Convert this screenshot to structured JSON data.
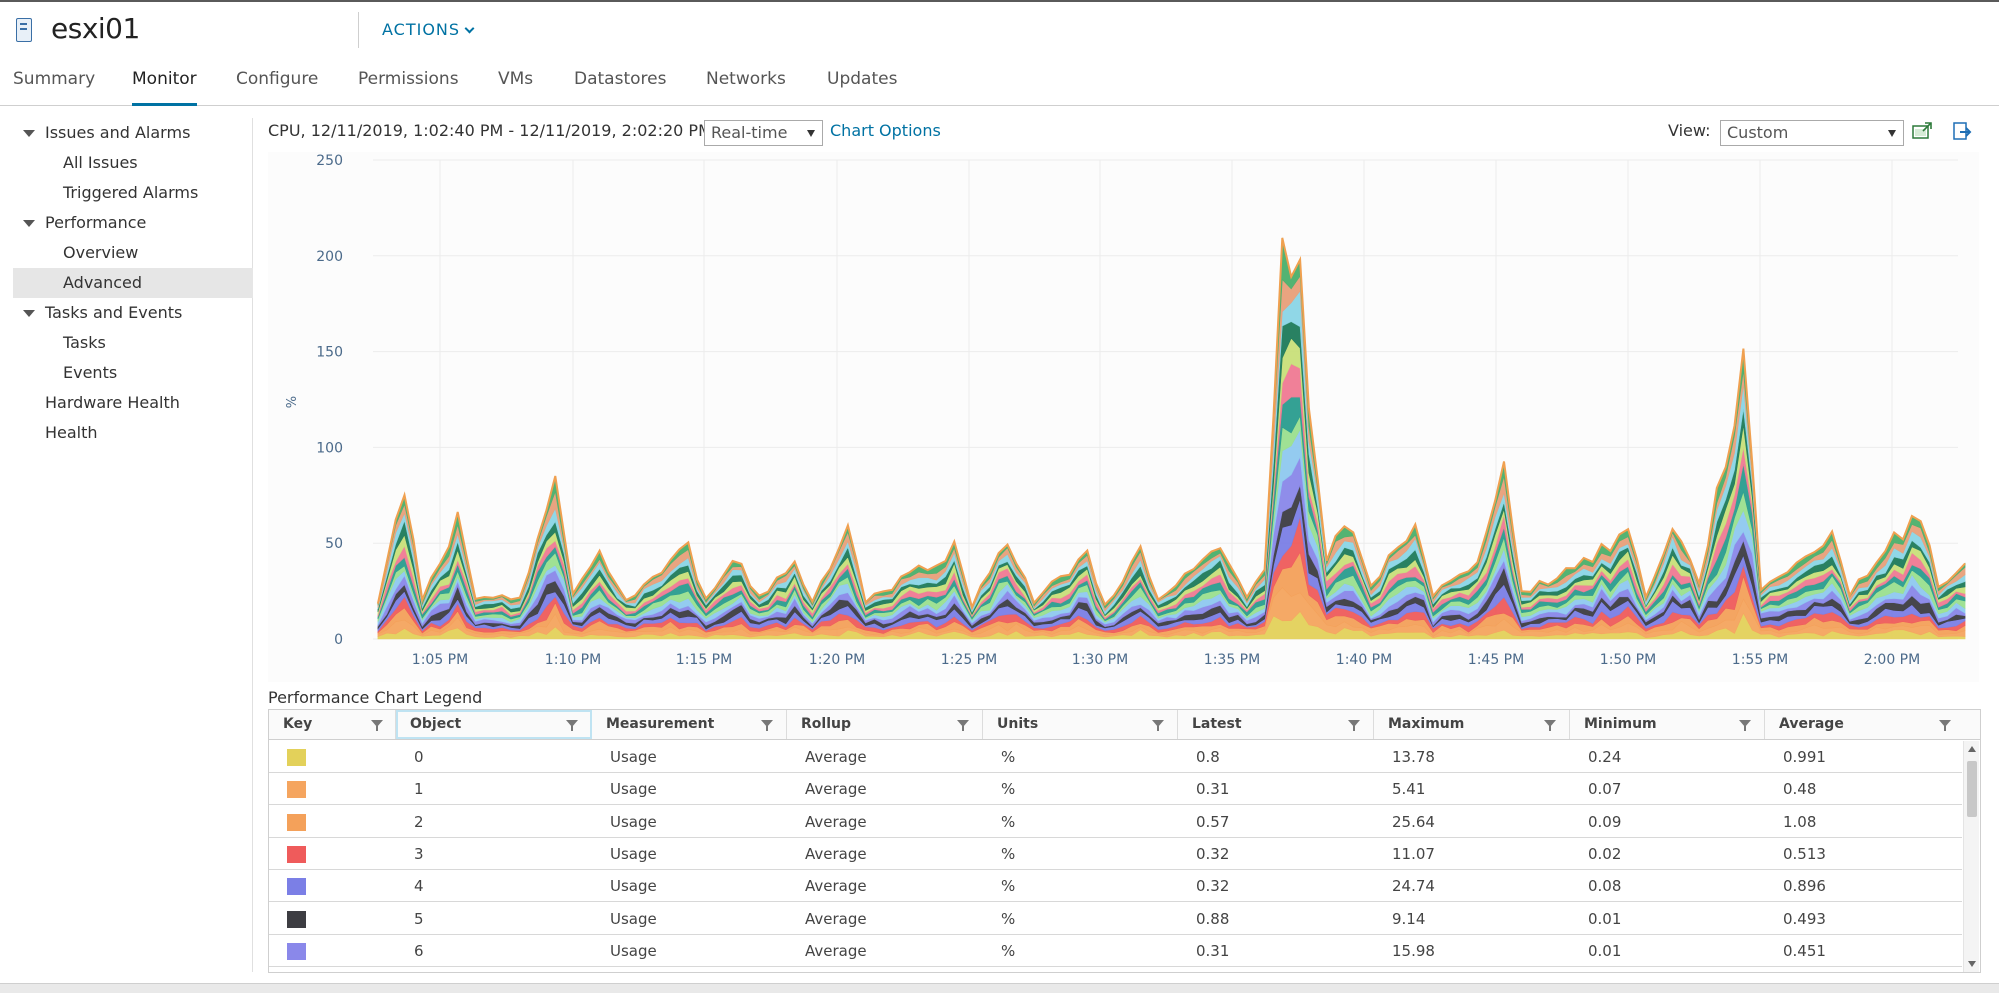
{
  "header": {
    "title": "esxi01",
    "actions_label": "ACTIONS"
  },
  "tabs": [
    {
      "label": "Summary"
    },
    {
      "label": "Monitor"
    },
    {
      "label": "Configure"
    },
    {
      "label": "Permissions"
    },
    {
      "label": "VMs"
    },
    {
      "label": "Datastores"
    },
    {
      "label": "Networks"
    },
    {
      "label": "Updates"
    }
  ],
  "active_tab": "Monitor",
  "sidebar": {
    "items": [
      {
        "label": "Issues and Alarms",
        "expanded": true
      },
      {
        "label": "All Issues"
      },
      {
        "label": "Triggered Alarms"
      },
      {
        "label": "Performance",
        "expanded": true
      },
      {
        "label": "Overview"
      },
      {
        "label": "Advanced",
        "selected": true
      },
      {
        "label": "Tasks and Events",
        "expanded": true
      },
      {
        "label": "Tasks"
      },
      {
        "label": "Events"
      },
      {
        "label": "Hardware Health"
      },
      {
        "label": "Health"
      }
    ]
  },
  "chart_header": {
    "label": "CPU, 12/11/2019, 1:02:40 PM - 12/11/2019, 2:02:20 PM",
    "timespan": "Real-time",
    "chart_options": "Chart Options",
    "view_label": "View:",
    "view_value": "Custom"
  },
  "chart_data": {
    "type": "area",
    "stacked": true,
    "title": "",
    "ylabel": "%",
    "xlabel": "",
    "ylim": [
      0,
      250
    ],
    "yticks": [
      "250",
      "200",
      "150",
      "100",
      "50",
      "0"
    ],
    "xticks": [
      "1:05 PM",
      "1:10 PM",
      "1:15 PM",
      "1:20 PM",
      "1:25 PM",
      "1:30 PM",
      "1:35 PM",
      "1:40 PM",
      "1:45 PM",
      "1:50 PM",
      "1:55 PM",
      "2:00 PM"
    ],
    "grid": true,
    "total_profile": [
      [
        "1:02:40 PM",
        18
      ],
      [
        "1:03:40 PM",
        80
      ],
      [
        "1:04:20 PM",
        20
      ],
      [
        "1:05:40 PM",
        62
      ],
      [
        "1:06:20 PM",
        20
      ],
      [
        "1:08:00 PM",
        22
      ],
      [
        "1:09:20 PM",
        85
      ],
      [
        "1:10:00 PM",
        22
      ],
      [
        "1:11:00 PM",
        46
      ],
      [
        "1:12:00 PM",
        20
      ],
      [
        "1:14:20 PM",
        48
      ],
      [
        "1:15:00 PM",
        20
      ],
      [
        "1:16:00 PM",
        45
      ],
      [
        "1:17:00 PM",
        22
      ],
      [
        "1:18:20 PM",
        40
      ],
      [
        "1:19:00 PM",
        20
      ],
      [
        "1:20:20 PM",
        60
      ],
      [
        "1:21:00 PM",
        20
      ],
      [
        "1:24:20 PM",
        48
      ],
      [
        "1:25:00 PM",
        18
      ],
      [
        "1:26:20 PM",
        54
      ],
      [
        "1:27:20 PM",
        20
      ],
      [
        "1:29:20 PM",
        44
      ],
      [
        "1:30:00 PM",
        18
      ],
      [
        "1:31:20 PM",
        46
      ],
      [
        "1:32:00 PM",
        20
      ],
      [
        "1:34:20 PM",
        48
      ],
      [
        "1:35:20 PM",
        22
      ],
      [
        "1:36:00 PM",
        40
      ],
      [
        "1:36:40 PM",
        210
      ],
      [
        "1:37:20 PM",
        188
      ],
      [
        "1:37:40 PM",
        120
      ],
      [
        "1:38:20 PM",
        38
      ],
      [
        "1:39:00 PM",
        64
      ],
      [
        "1:40:00 PM",
        28
      ],
      [
        "1:41:40 PM",
        62
      ],
      [
        "1:42:20 PM",
        24
      ],
      [
        "1:44:00 PM",
        38
      ],
      [
        "1:45:00 PM",
        99
      ],
      [
        "1:45:40 PM",
        24
      ],
      [
        "1:48:40 PM",
        46
      ],
      [
        "1:49:40 PM",
        58
      ],
      [
        "1:50:20 PM",
        22
      ],
      [
        "1:51:20 PM",
        60
      ],
      [
        "1:52:20 PM",
        30
      ],
      [
        "1:54:00 PM",
        142
      ],
      [
        "1:54:40 PM",
        28
      ],
      [
        "1:56:20 PM",
        42
      ],
      [
        "1:57:20 PM",
        58
      ],
      [
        "1:58:00 PM",
        24
      ],
      [
        "1:59:40 PM",
        52
      ],
      [
        "2:00:40 PM",
        67
      ],
      [
        "2:01:20 PM",
        30
      ],
      [
        "2:02:20 PM",
        38
      ]
    ],
    "series_colors": [
      "#e3d15a",
      "#f5a55f",
      "#f4a15a",
      "#ef5b5b",
      "#7b7fe6",
      "#3d3d42",
      "#8a88ea",
      "#8fc9f0",
      "#9be08f",
      "#2a9d8f",
      "#f07a93",
      "#c9e07a",
      "#1e7b5a",
      "#8bd6e6",
      "#e8a07a",
      "#4bb06b"
    ]
  },
  "legend": {
    "title": "Performance Chart Legend",
    "columns": [
      "Key",
      "Object",
      "Measurement",
      "Rollup",
      "Units",
      "Latest",
      "Maximum",
      "Minimum",
      "Average"
    ],
    "rows": [
      {
        "color": "#e3d15a",
        "object": "0",
        "measurement": "Usage",
        "rollup": "Average",
        "units": "%",
        "latest": "0.8",
        "maximum": "13.78",
        "minimum": "0.24",
        "average": "0.991"
      },
      {
        "color": "#f5a55f",
        "object": "1",
        "measurement": "Usage",
        "rollup": "Average",
        "units": "%",
        "latest": "0.31",
        "maximum": "5.41",
        "minimum": "0.07",
        "average": "0.48"
      },
      {
        "color": "#f4a15a",
        "object": "2",
        "measurement": "Usage",
        "rollup": "Average",
        "units": "%",
        "latest": "0.57",
        "maximum": "25.64",
        "minimum": "0.09",
        "average": "1.08"
      },
      {
        "color": "#ef5b5b",
        "object": "3",
        "measurement": "Usage",
        "rollup": "Average",
        "units": "%",
        "latest": "0.32",
        "maximum": "11.07",
        "minimum": "0.02",
        "average": "0.513"
      },
      {
        "color": "#7b7fe6",
        "object": "4",
        "measurement": "Usage",
        "rollup": "Average",
        "units": "%",
        "latest": "0.32",
        "maximum": "24.74",
        "minimum": "0.08",
        "average": "0.896"
      },
      {
        "color": "#3d3d42",
        "object": "5",
        "measurement": "Usage",
        "rollup": "Average",
        "units": "%",
        "latest": "0.88",
        "maximum": "9.14",
        "minimum": "0.01",
        "average": "0.493"
      },
      {
        "color": "#8a88ea",
        "object": "6",
        "measurement": "Usage",
        "rollup": "Average",
        "units": "%",
        "latest": "0.31",
        "maximum": "15.98",
        "minimum": "0.01",
        "average": "0.451"
      }
    ]
  }
}
